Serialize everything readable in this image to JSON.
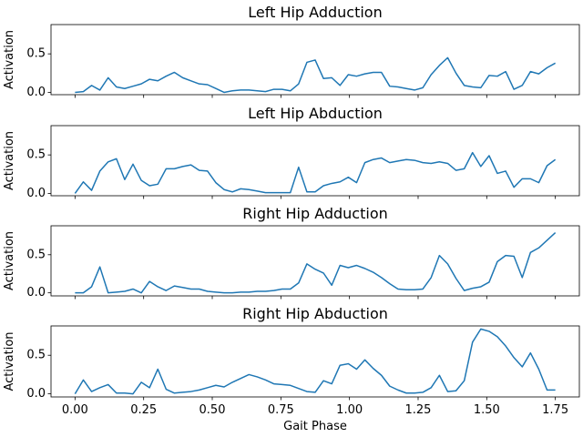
{
  "line_color": "#1f77b4",
  "chart_data": [
    {
      "type": "line",
      "title": "Left Hip Adduction",
      "ylabel": "Activation",
      "xlabel": "",
      "xlim": [
        -0.0875,
        1.8375
      ],
      "ylim": [
        -0.03,
        0.88
      ],
      "xticks": [
        0.0,
        0.25,
        0.5,
        0.75,
        1.0,
        1.25,
        1.5,
        1.75
      ],
      "xtick_labels": [],
      "yticks": [
        0.0,
        0.5
      ],
      "ytick_labels": [
        "0.0",
        "0.5"
      ],
      "grid": false,
      "series": [
        {
          "values": [
            0.0,
            0.01,
            0.09,
            0.03,
            0.19,
            0.07,
            0.05,
            0.08,
            0.11,
            0.17,
            0.15,
            0.21,
            0.26,
            0.19,
            0.15,
            0.11,
            0.1,
            0.05,
            0.0,
            0.02,
            0.03,
            0.03,
            0.02,
            0.01,
            0.04,
            0.04,
            0.02,
            0.11,
            0.39,
            0.42,
            0.18,
            0.19,
            0.09,
            0.23,
            0.21,
            0.24,
            0.26,
            0.26,
            0.08,
            0.07,
            0.05,
            0.03,
            0.06,
            0.23,
            0.35,
            0.45,
            0.25,
            0.09,
            0.07,
            0.06,
            0.22,
            0.21,
            0.27,
            0.04,
            0.09,
            0.27,
            0.24,
            0.32,
            0.38
          ]
        }
      ]
    },
    {
      "type": "line",
      "title": "Left Hip Abduction",
      "ylabel": "Activation",
      "xlabel": "",
      "xlim": [
        -0.0875,
        1.8375
      ],
      "ylim": [
        -0.03,
        0.88
      ],
      "xticks": [
        0.0,
        0.25,
        0.5,
        0.75,
        1.0,
        1.25,
        1.5,
        1.75
      ],
      "xtick_labels": [],
      "yticks": [
        0.0,
        0.5
      ],
      "ytick_labels": [
        "0.0",
        "0.5"
      ],
      "grid": false,
      "series": [
        {
          "values": [
            0.0,
            0.15,
            0.04,
            0.29,
            0.41,
            0.45,
            0.18,
            0.38,
            0.17,
            0.1,
            0.12,
            0.32,
            0.32,
            0.35,
            0.37,
            0.3,
            0.29,
            0.14,
            0.05,
            0.02,
            0.06,
            0.05,
            0.03,
            0.01,
            0.01,
            0.01,
            0.01,
            0.34,
            0.02,
            0.02,
            0.1,
            0.13,
            0.15,
            0.21,
            0.14,
            0.4,
            0.44,
            0.46,
            0.4,
            0.42,
            0.44,
            0.43,
            0.4,
            0.39,
            0.41,
            0.39,
            0.3,
            0.32,
            0.53,
            0.35,
            0.49,
            0.26,
            0.29,
            0.08,
            0.19,
            0.19,
            0.14,
            0.36,
            0.44
          ]
        }
      ]
    },
    {
      "type": "line",
      "title": "Right Hip Adduction",
      "ylabel": "Activation",
      "xlabel": "",
      "xlim": [
        -0.0875,
        1.8375
      ],
      "ylim": [
        -0.04,
        0.88
      ],
      "xticks": [
        0.0,
        0.25,
        0.5,
        0.75,
        1.0,
        1.25,
        1.5,
        1.75
      ],
      "xtick_labels": [],
      "yticks": [
        0.0,
        0.5
      ],
      "ytick_labels": [
        "0.0",
        "0.5"
      ],
      "grid": false,
      "series": [
        {
          "values": [
            0.0,
            0.0,
            0.08,
            0.34,
            0.0,
            0.01,
            0.02,
            0.05,
            0.0,
            0.15,
            0.08,
            0.03,
            0.09,
            0.07,
            0.05,
            0.05,
            0.02,
            0.01,
            0.0,
            0.0,
            0.01,
            0.01,
            0.02,
            0.02,
            0.03,
            0.05,
            0.05,
            0.13,
            0.38,
            0.31,
            0.26,
            0.1,
            0.36,
            0.33,
            0.36,
            0.32,
            0.27,
            0.2,
            0.12,
            0.05,
            0.04,
            0.04,
            0.05,
            0.2,
            0.49,
            0.38,
            0.19,
            0.03,
            0.06,
            0.08,
            0.14,
            0.41,
            0.49,
            0.48,
            0.2,
            0.53,
            0.59,
            0.69,
            0.79
          ]
        }
      ]
    },
    {
      "type": "line",
      "title": "Right Hip Abduction",
      "ylabel": "Activation",
      "xlabel": "Gait Phase",
      "xlim": [
        -0.0875,
        1.8375
      ],
      "ylim": [
        -0.04,
        0.88
      ],
      "xticks": [
        0.0,
        0.25,
        0.5,
        0.75,
        1.0,
        1.25,
        1.5,
        1.75
      ],
      "xtick_labels": [
        "0.00",
        "0.25",
        "0.50",
        "0.75",
        "1.00",
        "1.25",
        "1.50",
        "1.75"
      ],
      "yticks": [
        0.0,
        0.5
      ],
      "ytick_labels": [
        "0.0",
        "0.5"
      ],
      "grid": false,
      "series": [
        {
          "values": [
            0.0,
            0.18,
            0.03,
            0.08,
            0.12,
            0.01,
            0.01,
            0.0,
            0.15,
            0.08,
            0.32,
            0.06,
            0.01,
            0.02,
            0.03,
            0.05,
            0.08,
            0.11,
            0.09,
            0.15,
            0.2,
            0.25,
            0.22,
            0.18,
            0.13,
            0.12,
            0.11,
            0.07,
            0.03,
            0.02,
            0.17,
            0.13,
            0.37,
            0.39,
            0.32,
            0.44,
            0.33,
            0.24,
            0.1,
            0.05,
            0.01,
            0.01,
            0.02,
            0.08,
            0.24,
            0.03,
            0.04,
            0.17,
            0.67,
            0.84,
            0.81,
            0.74,
            0.62,
            0.47,
            0.35,
            0.53,
            0.32,
            0.05,
            0.05
          ]
        }
      ]
    }
  ]
}
